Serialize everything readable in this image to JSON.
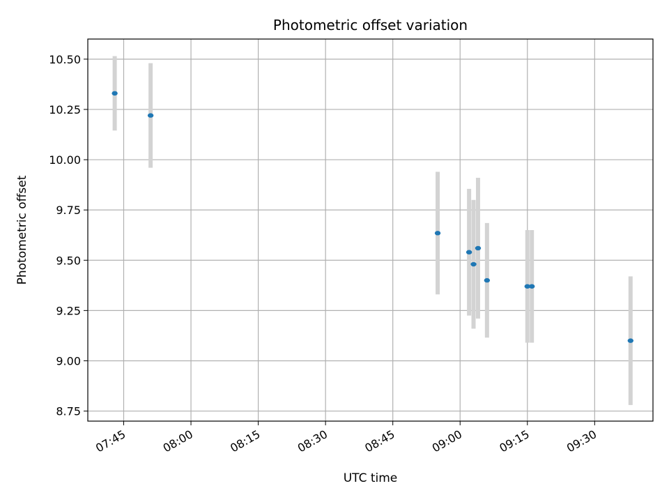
{
  "chart_data": {
    "type": "scatter",
    "title": "Photometric offset variation",
    "xlabel": "UTC time",
    "ylabel": "Photometric offset",
    "x_ticks": [
      "07:45",
      "08:00",
      "08:15",
      "08:30",
      "08:45",
      "09:00",
      "09:15",
      "09:30"
    ],
    "x_tick_minutes": [
      465,
      480,
      495,
      510,
      525,
      540,
      555,
      570
    ],
    "y_ticks": [
      "8.75",
      "9.00",
      "9.25",
      "9.50",
      "9.75",
      "10.00",
      "10.25",
      "10.50"
    ],
    "xlim": [
      "07:37",
      "09:43"
    ],
    "ylim": [
      8.7,
      10.6
    ],
    "grid": true,
    "marker_color": "#1f77b4",
    "errorbar_color": "#d3d3d3",
    "points": [
      {
        "time": "07:43",
        "y": 10.33,
        "err": 0.185
      },
      {
        "time": "07:51",
        "y": 10.22,
        "err": 0.26
      },
      {
        "time": "08:55",
        "y": 9.635,
        "err": 0.305
      },
      {
        "time": "09:02",
        "y": 9.54,
        "err": 0.315
      },
      {
        "time": "09:03",
        "y": 9.48,
        "err": 0.32
      },
      {
        "time": "09:04",
        "y": 9.56,
        "err": 0.35
      },
      {
        "time": "09:06",
        "y": 9.4,
        "err": 0.285
      },
      {
        "time": "09:15",
        "y": 9.37,
        "err": 0.28
      },
      {
        "time": "09:16",
        "y": 9.37,
        "err": 0.28
      },
      {
        "time": "09:38",
        "y": 9.1,
        "err": 0.32
      }
    ]
  }
}
